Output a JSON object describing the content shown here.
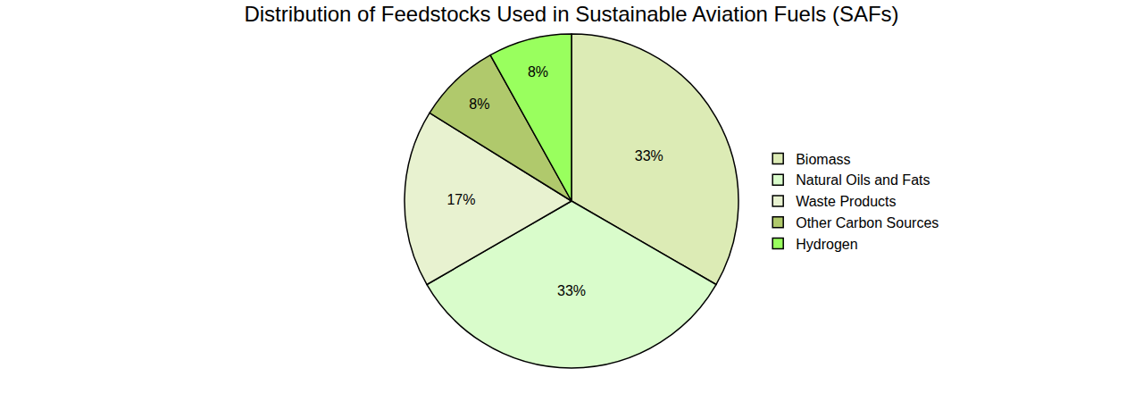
{
  "chart_data": {
    "type": "pie",
    "title": "Distribution of Feedstocks Used in Sustainable Aviation Fuels (SAFs)",
    "categories": [
      "Biomass",
      "Natural Oils and Fats",
      "Waste Products",
      "Other Carbon Sources",
      "Hydrogen"
    ],
    "values": [
      33,
      33,
      17,
      8,
      8
    ],
    "value_labels": [
      "33%",
      "33%",
      "17%",
      "8%",
      "8%"
    ],
    "colors": [
      "#dcebb5",
      "#d9fccb",
      "#e8f2d0",
      "#b0c96c",
      "#99ff5e"
    ],
    "data_labels": true,
    "legend": "right"
  }
}
